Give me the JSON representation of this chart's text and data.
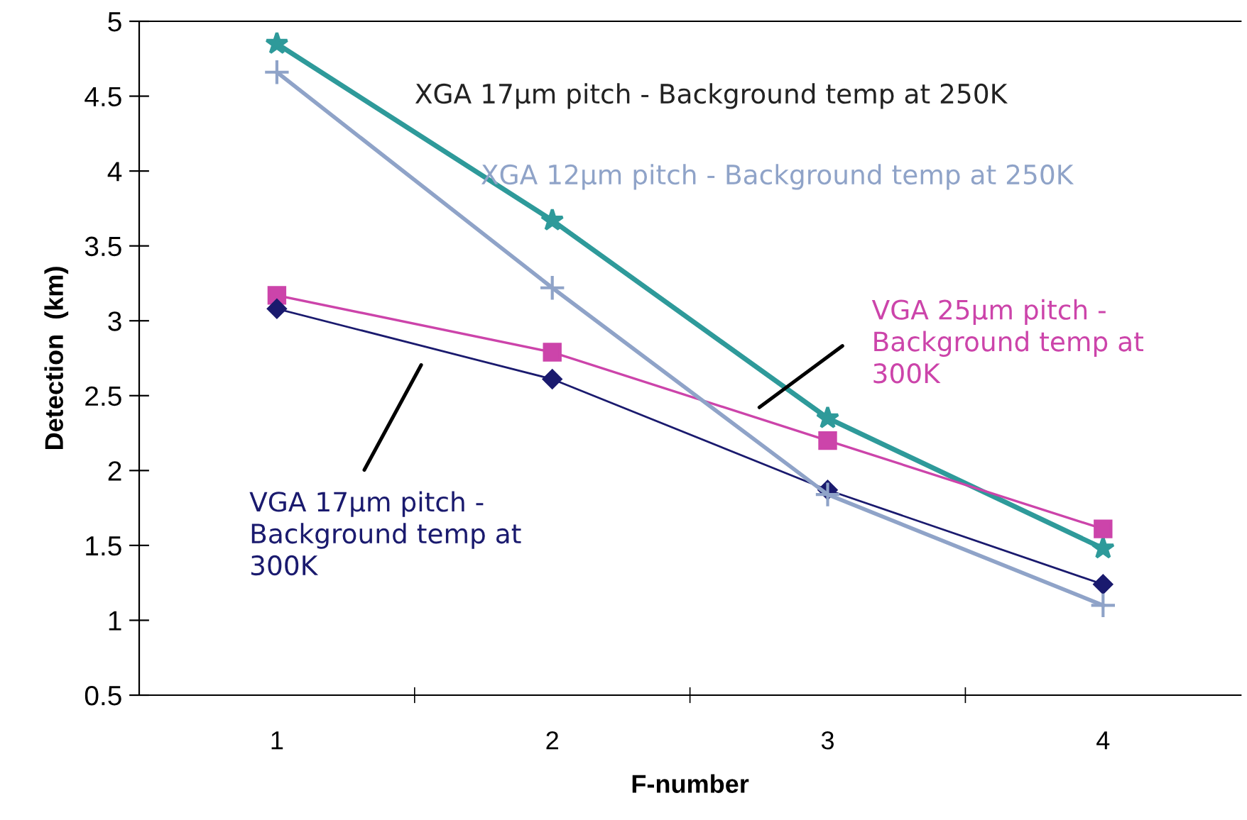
{
  "chart_data": {
    "type": "line",
    "xlabel": "F-number",
    "ylabel": "Detection  (km)",
    "categories": [
      "1",
      "2",
      "3",
      "4"
    ],
    "series": [
      {
        "name": "XGA 17µm pitch - Background temp at 250K",
        "color": "#2e9a9a",
        "marker": "star",
        "values": [
          4.85,
          3.67,
          2.35,
          1.48
        ]
      },
      {
        "name": "XGA 12µm pitch - Background temp at 250K",
        "color": "#8fa3c8",
        "marker": "cross",
        "values": [
          4.66,
          3.22,
          1.84,
          1.1
        ]
      },
      {
        "name": "VGA 25µm pitch - Background temp at 300K",
        "color": "#cc44aa",
        "marker": "square",
        "values": [
          3.17,
          2.79,
          2.2,
          1.61
        ]
      },
      {
        "name": "VGA 17µm pitch - Background temp at 300K",
        "color": "#1a1a6e",
        "marker": "diamond",
        "values": [
          3.08,
          2.61,
          1.87,
          1.24
        ]
      }
    ],
    "ylim": [
      0.5,
      5
    ],
    "yticks": [
      0.5,
      1,
      1.5,
      2,
      2.5,
      3,
      3.5,
      4,
      4.5,
      5
    ],
    "grid": false,
    "legend": false,
    "line_style": "solid"
  }
}
